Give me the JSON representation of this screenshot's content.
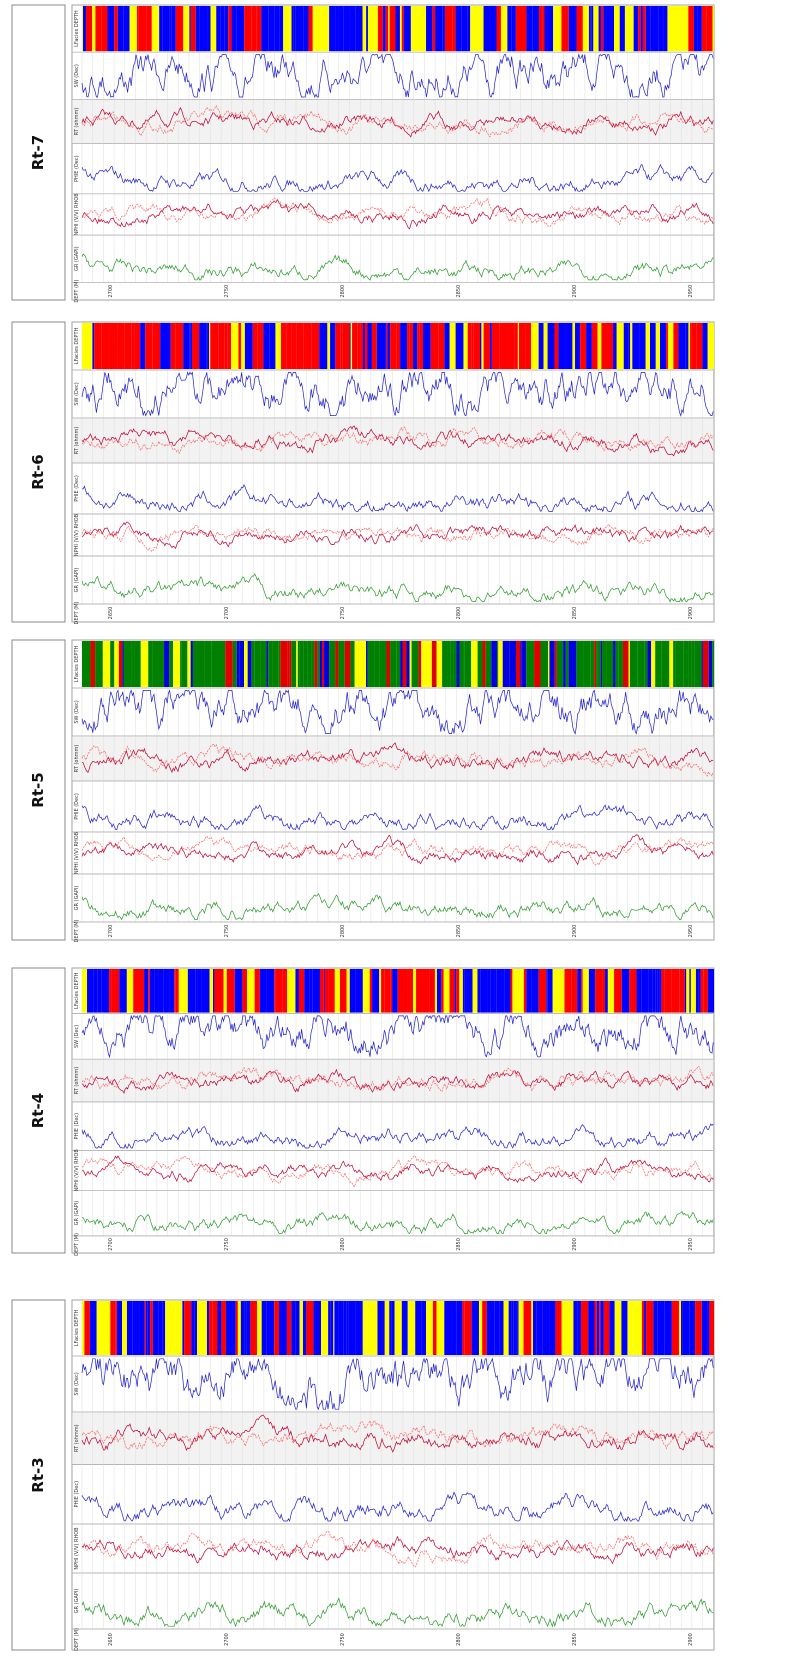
{
  "panels": [
    {
      "label": "Rt-7",
      "depths": [
        "2700",
        "2750",
        "2800",
        "2850",
        "2900",
        "2950"
      ]
    },
    {
      "label": "Rt-6",
      "depths": [
        "2650",
        "2700",
        "2750",
        "2800",
        "2850",
        "2900"
      ]
    },
    {
      "label": "Rt-5",
      "depths": [
        "2700",
        "2750",
        "2800",
        "2850",
        "2900",
        "2950"
      ]
    },
    {
      "label": "Rt-4",
      "depths": [
        "2700",
        "2750",
        "2800",
        "2850",
        "2900",
        "2950"
      ]
    },
    {
      "label": "Rt-3",
      "depths": [
        "2650",
        "2700",
        "2750",
        "2800",
        "2850",
        "2900"
      ]
    }
  ],
  "track_headers": [
    "LFacies DEPTH",
    "SW (Dec)",
    "RT (ohmm)",
    "PHIE (Dec)",
    "NPHI (V/V) RHOB",
    "GR (GAPI)",
    "DEPT (M)"
  ]
}
